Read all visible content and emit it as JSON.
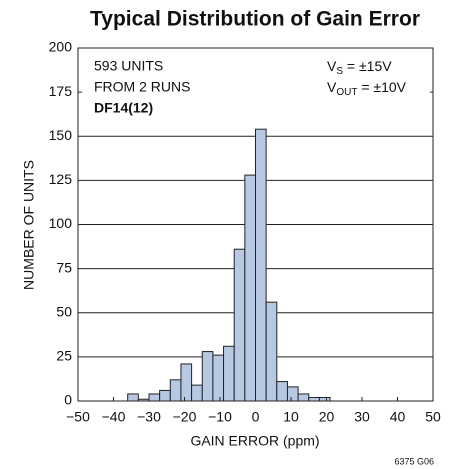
{
  "chart_data": {
    "type": "histogram",
    "title": "Typical Distribution of Gain Error",
    "xlabel": "GAIN ERROR (ppm)",
    "ylabel": "NUMBER OF UNITS",
    "bins": [
      -36,
      -33,
      -30,
      -27,
      -24,
      -21,
      -18,
      -15,
      -12,
      -9,
      -6,
      -3,
      0,
      3,
      6,
      9,
      12,
      15,
      18,
      21
    ],
    "values": [
      4,
      1,
      4,
      6,
      12,
      21,
      9,
      28,
      26,
      31,
      86,
      128,
      154,
      56,
      11,
      8,
      4,
      2,
      2
    ],
    "color": "#b7c8e2",
    "xlim": [
      -50,
      50
    ],
    "ylim": [
      0,
      200
    ],
    "xticks": [
      {
        "value": -50,
        "label": "−50"
      },
      {
        "value": -40,
        "label": "−40"
      },
      {
        "value": -30,
        "label": "−30"
      },
      {
        "value": -20,
        "label": "−20"
      },
      {
        "value": -10,
        "label": "−10"
      },
      0,
      10,
      20,
      30,
      40,
      50
    ],
    "yticks": [
      0,
      25,
      50,
      75,
      100,
      125,
      150,
      175,
      200
    ],
    "grid": true,
    "annotations": {
      "units": "593 UNITS",
      "runs": "FROM 2 RUNS",
      "code": "DF14(12)",
      "vs": {
        "main": "V",
        "sub": "S",
        "rest": " = ±15V"
      },
      "vout": {
        "main": "V",
        "sub": "OUT",
        "rest": " = ±10V"
      }
    },
    "footnote": "6375 G06"
  }
}
